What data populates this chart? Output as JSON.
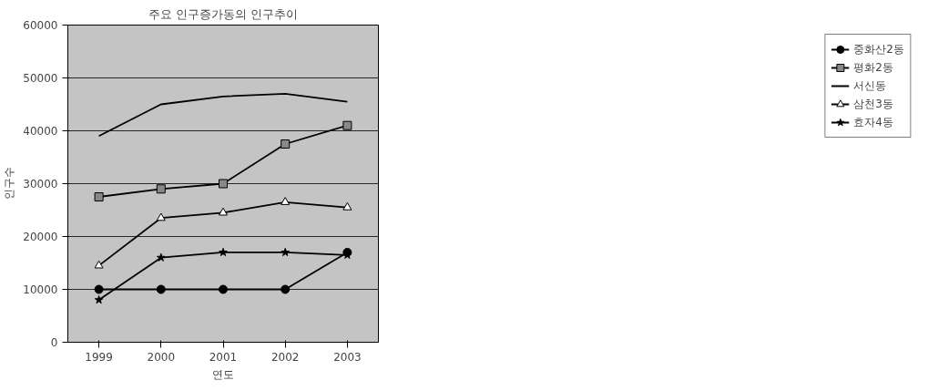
{
  "chart_data": {
    "type": "line",
    "title": "주요 인구증가동의 인구추이",
    "xlabel": "연도",
    "ylabel": "인구수",
    "categories": [
      "1999",
      "2000",
      "2001",
      "2002",
      "2003"
    ],
    "ylim": [
      0,
      60000
    ],
    "yticks": [
      0,
      10000,
      20000,
      30000,
      40000,
      50000,
      60000
    ],
    "grid": "y",
    "legend": "right",
    "series": [
      {
        "name": "중화산2동",
        "color": "#000000",
        "marker": "circle",
        "values": [
          10000,
          10000,
          10000,
          10000,
          17000
        ]
      },
      {
        "name": "평화2동",
        "color": "#000000",
        "marker": "square",
        "values": [
          27500,
          29000,
          30000,
          37500,
          41000
        ]
      },
      {
        "name": "서신동",
        "color": "#000000",
        "marker": "none",
        "values": [
          39000,
          45000,
          46500,
          47000,
          45500
        ]
      },
      {
        "name": "삼천3동",
        "color": "#000000",
        "marker": "triangle",
        "values": [
          14500,
          23500,
          24500,
          26500,
          25500
        ]
      },
      {
        "name": "효자4동",
        "color": "#000000",
        "marker": "star",
        "values": [
          8000,
          16000,
          17000,
          17000,
          16500
        ]
      }
    ]
  }
}
